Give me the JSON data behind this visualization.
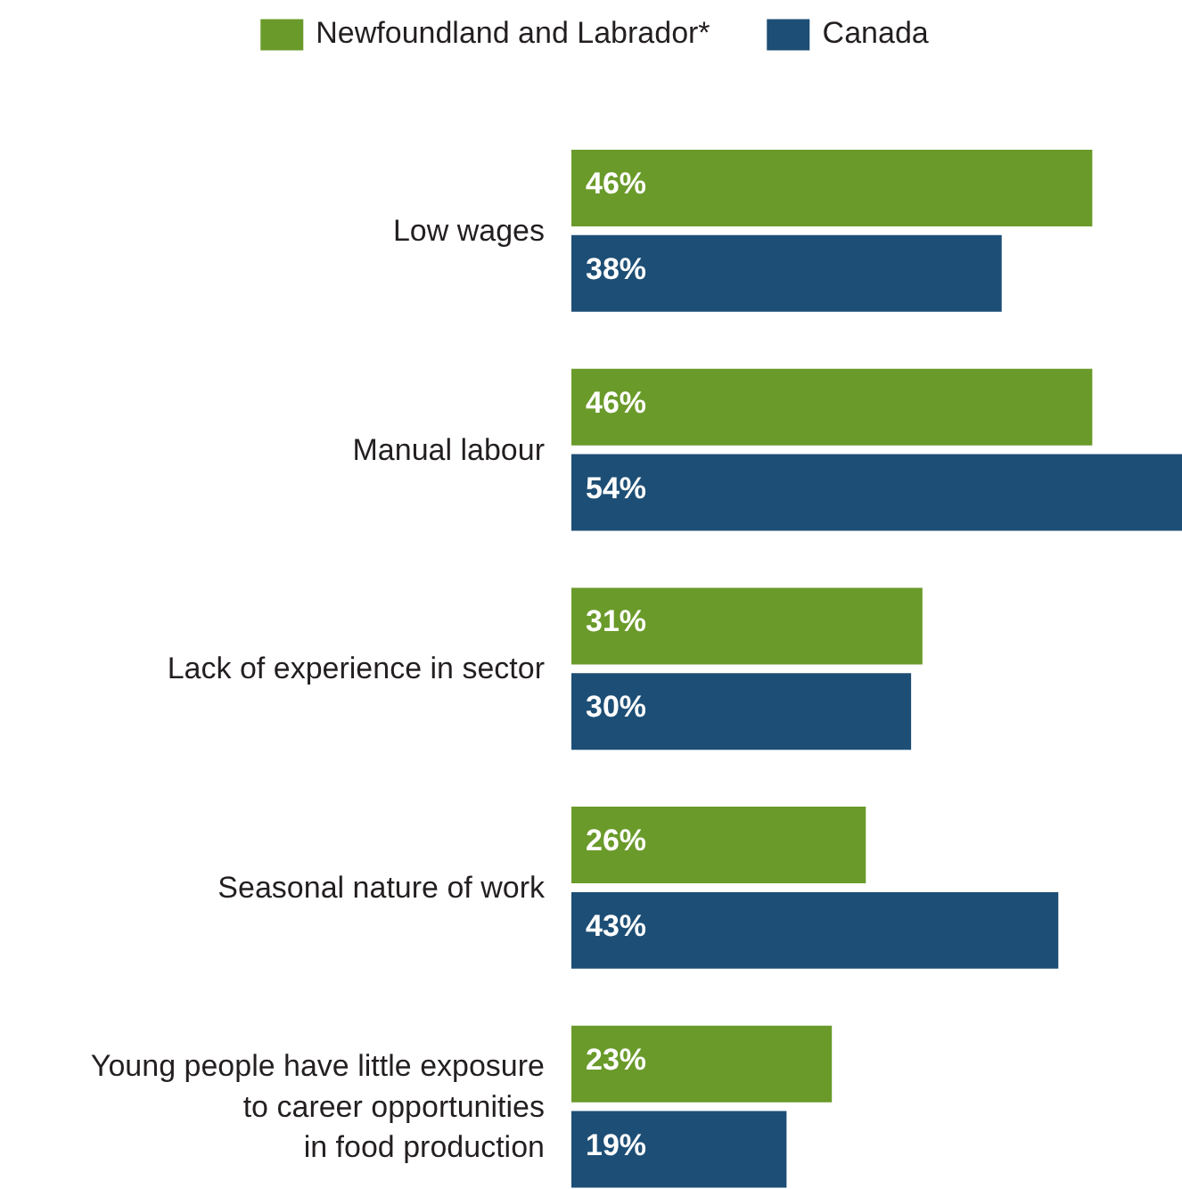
{
  "chart_data": {
    "type": "bar",
    "orientation": "horizontal",
    "categories": [
      "Low wages",
      "Manual labour",
      "Lack of experience in sector",
      "Seasonal nature of work",
      "Young people have little exposure\nto career opportunities\nin food production"
    ],
    "series": [
      {
        "name": "Newfoundland and Labrador*",
        "color": "#6a9a2a",
        "values": [
          46,
          46,
          31,
          26,
          23
        ],
        "value_labels": [
          "46%",
          "46%",
          "31%",
          "26%",
          "23%"
        ]
      },
      {
        "name": "Canada",
        "color": "#1d4e75",
        "values": [
          38,
          54,
          30,
          43,
          19
        ],
        "value_labels": [
          "38%",
          "54%",
          "30%",
          "43%",
          "19%"
        ]
      }
    ],
    "legend": "top",
    "grid": false
  }
}
